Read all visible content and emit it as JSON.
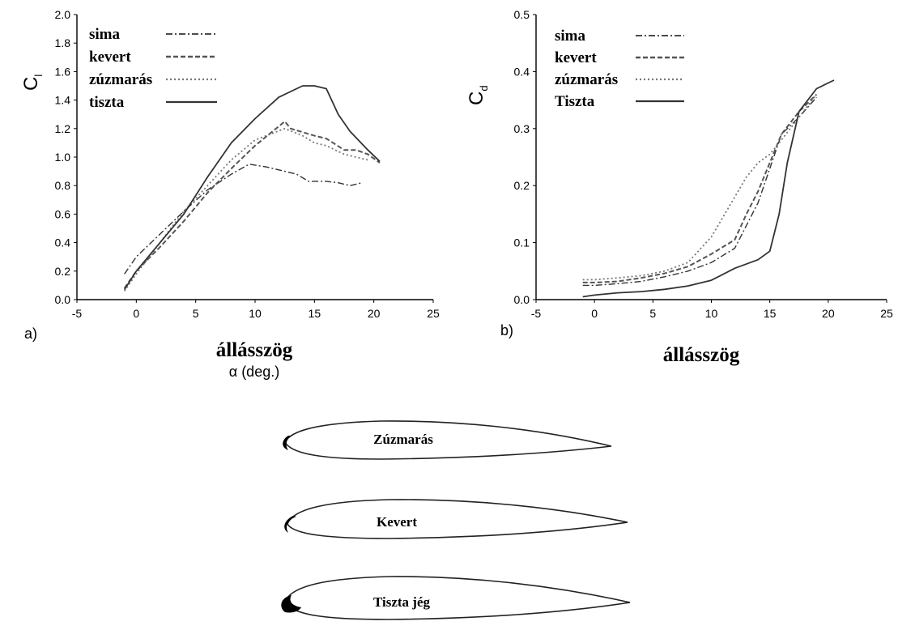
{
  "chart_data": [
    {
      "type": "line",
      "panel_label": "a)",
      "ylabel_main": "C",
      "ylabel_sub": "l",
      "xlabel": "állásszög",
      "xlabel_sub": "α (deg.)",
      "xlim": [
        -5,
        25
      ],
      "ylim": [
        0,
        2.0
      ],
      "xticks": [
        "-5",
        "0",
        "5",
        "10",
        "15",
        "20",
        "25"
      ],
      "yticks": [
        "0.0",
        "0.2",
        "0.4",
        "0.6",
        "0.8",
        "1.0",
        "1.2",
        "1.4",
        "1.6",
        "1.8",
        "2.0"
      ],
      "legend_position": "top-left",
      "series": [
        {
          "name": "sima",
          "dash": "8 3 2 3",
          "x": [
            -1,
            0,
            2,
            4,
            6,
            8,
            9.5,
            11,
            12.5,
            13.5,
            14.5,
            16,
            17,
            18,
            19
          ],
          "y": [
            0.18,
            0.3,
            0.46,
            0.62,
            0.77,
            0.88,
            0.95,
            0.93,
            0.9,
            0.88,
            0.83,
            0.83,
            0.82,
            0.8,
            0.82
          ]
        },
        {
          "name": "kevert",
          "dash": "6 3",
          "x": [
            -1,
            0,
            2,
            4,
            6,
            8,
            10,
            12.5,
            13,
            15,
            16,
            17.5,
            18.5,
            19.5,
            20.5
          ],
          "y": [
            0.08,
            0.2,
            0.37,
            0.55,
            0.75,
            0.92,
            1.08,
            1.25,
            1.2,
            1.15,
            1.13,
            1.05,
            1.05,
            1.02,
            0.96
          ]
        },
        {
          "name": "zúzmarás",
          "dash": "2 3",
          "x": [
            -1,
            0,
            2,
            4,
            6,
            8,
            10,
            12.5,
            14,
            15,
            16,
            17.5,
            18.5,
            19.5
          ],
          "y": [
            0.06,
            0.18,
            0.4,
            0.62,
            0.8,
            0.98,
            1.12,
            1.2,
            1.15,
            1.1,
            1.08,
            1.02,
            1.0,
            0.98
          ]
        },
        {
          "name": "tiszta",
          "dash": "",
          "x": [
            -1,
            0,
            2,
            4,
            6,
            8,
            10,
            12,
            14,
            15,
            16,
            17,
            18,
            19.5,
            20.5
          ],
          "y": [
            0.07,
            0.2,
            0.4,
            0.6,
            0.86,
            1.1,
            1.27,
            1.42,
            1.5,
            1.5,
            1.48,
            1.3,
            1.18,
            1.05,
            0.97
          ]
        }
      ]
    },
    {
      "type": "line",
      "panel_label": "b)",
      "ylabel_main": "C",
      "ylabel_sub": "d",
      "xlabel": "állásszög",
      "xlim": [
        -5,
        25
      ],
      "ylim": [
        0,
        0.5
      ],
      "xticks": [
        "-5",
        "0",
        "5",
        "10",
        "15",
        "20",
        "25"
      ],
      "yticks": [
        "0.0",
        "0.1",
        "0.2",
        "0.3",
        "0.4",
        "0.5"
      ],
      "legend_position": "top-left",
      "series": [
        {
          "name": "sima",
          "dash": "8 3 2 3",
          "x": [
            -1,
            0,
            2,
            4,
            6,
            8,
            10,
            12,
            14,
            15,
            16,
            17.5,
            19
          ],
          "y": [
            0.025,
            0.025,
            0.028,
            0.032,
            0.04,
            0.05,
            0.065,
            0.09,
            0.17,
            0.23,
            0.29,
            0.32,
            0.355
          ]
        },
        {
          "name": "kevert",
          "dash": "6 3",
          "x": [
            -1,
            0,
            2,
            4,
            6,
            8,
            10,
            12,
            13,
            14,
            15,
            16,
            17.5,
            19
          ],
          "y": [
            0.03,
            0.03,
            0.032,
            0.038,
            0.046,
            0.058,
            0.08,
            0.105,
            0.15,
            0.19,
            0.24,
            0.29,
            0.33,
            0.36
          ]
        },
        {
          "name": "zúzmarás",
          "dash": "2 3",
          "x": [
            -1,
            0,
            2,
            4,
            6,
            8,
            10,
            12,
            13,
            14,
            15,
            16,
            17.5,
            19
          ],
          "y": [
            0.035,
            0.035,
            0.038,
            0.042,
            0.05,
            0.065,
            0.11,
            0.18,
            0.215,
            0.24,
            0.255,
            0.28,
            0.32,
            0.36
          ]
        },
        {
          "name": "Tiszta",
          "dash": "",
          "x": [
            -1,
            0,
            2,
            4,
            6,
            8,
            10,
            12,
            14,
            15,
            15.8,
            16.5,
            17.5,
            19,
            20.5
          ],
          "y": [
            0.005,
            0.008,
            0.012,
            0.014,
            0.018,
            0.024,
            0.034,
            0.055,
            0.07,
            0.085,
            0.15,
            0.24,
            0.33,
            0.37,
            0.385
          ]
        }
      ]
    }
  ],
  "airfoils": [
    {
      "label": "Zúzmarás"
    },
    {
      "label": "Kevert"
    },
    {
      "label": "Tiszta jég"
    }
  ]
}
